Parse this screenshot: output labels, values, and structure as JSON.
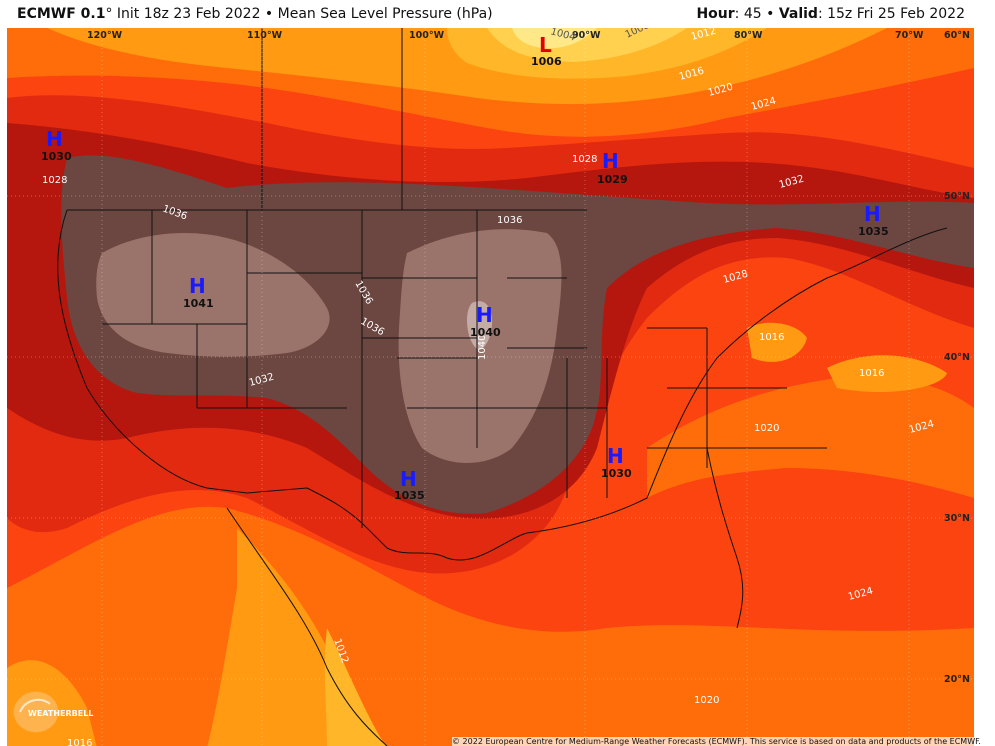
{
  "header": {
    "model": "ECMWF 0.1",
    "init": "° Init 18z 23 Feb 2022",
    "separator": " • ",
    "field": "Mean Sea Level Pressure (hPa)",
    "hour_label": "Hour",
    "hour_value": ": 45",
    "valid_label": "Valid",
    "valid_value": ": 15z Fri 25 Feb 2022"
  },
  "longitude_labels": [
    "120°W",
    "110°W",
    "100°W",
    "90°W",
    "80°W",
    "70°W",
    "60°N"
  ],
  "latitude_labels": [
    "50°N",
    "40°N",
    "30°N",
    "20°N"
  ],
  "isobar_labels": [
    "1004",
    "1008",
    "1012",
    "1016",
    "1020",
    "1024",
    "1028",
    "1028",
    "1032",
    "1036",
    "1036",
    "1036",
    "1036",
    "1040",
    "1032",
    "1028",
    "1016",
    "1016",
    "1020",
    "1024",
    "1024",
    "1020",
    "1012",
    "1016"
  ],
  "pressure_centers": [
    {
      "type": "L",
      "value": "1006",
      "color": "#e00000"
    },
    {
      "type": "H",
      "value": "1030",
      "color": "#1a1aff"
    },
    {
      "type": "H",
      "value": "1029",
      "color": "#1a1aff"
    },
    {
      "type": "H",
      "value": "1035",
      "color": "#1a1aff"
    },
    {
      "type": "H",
      "value": "1041",
      "color": "#1a1aff"
    },
    {
      "type": "H",
      "value": "1040",
      "color": "#1a1aff"
    },
    {
      "type": "H",
      "value": "1035",
      "color": "#1a1aff"
    },
    {
      "type": "H",
      "value": "1030",
      "color": "#1a1aff"
    }
  ],
  "palette": {
    "p1004": "#ffe888",
    "p1008": "#ffd14f",
    "p1012": "#ffb628",
    "p1016": "#ff9a12",
    "p1020": "#ff6d0a",
    "p1024": "#fb4410",
    "p1028": "#e22a10",
    "p1032": "#b5170e",
    "p1036": "#6c4640",
    "p1040": "#9a736a",
    "p1044": "#c4aba5"
  },
  "logo_text": "WEATHERBELL",
  "copyright": "© 2022 European Centre for Medium-Range Weather Forecasts (ECMWF). This service is based on data and products of the ECMWF."
}
